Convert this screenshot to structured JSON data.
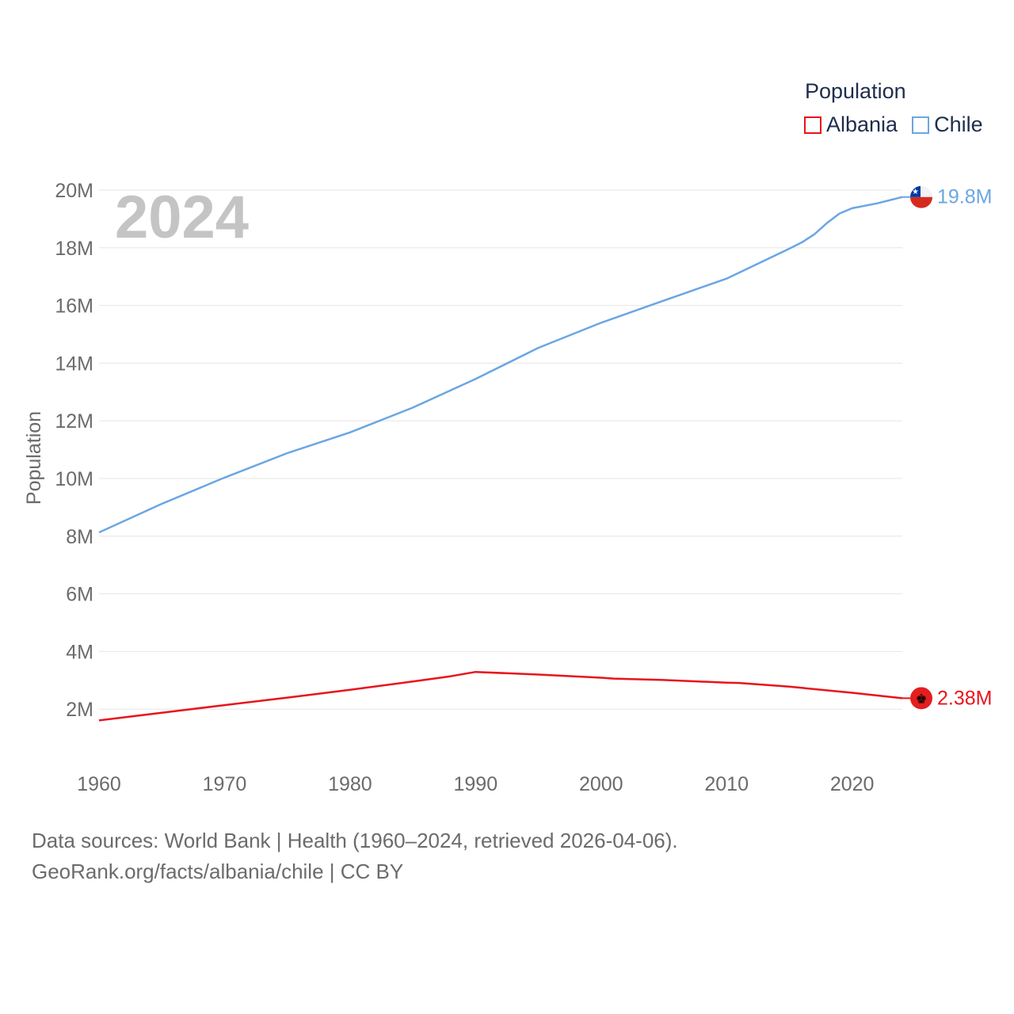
{
  "chart_data": {
    "type": "line",
    "year_label": "2024",
    "ylabel": "Population",
    "xlabel": "",
    "legend_title": "Population",
    "x_ticks": [
      "1960",
      "1970",
      "1980",
      "1990",
      "2000",
      "2010",
      "2020"
    ],
    "y_ticks": [
      "2M",
      "4M",
      "6M",
      "8M",
      "10M",
      "12M",
      "14M",
      "16M",
      "18M",
      "20M"
    ],
    "xlim": [
      1960,
      2024
    ],
    "ylim": [
      0,
      20000000
    ],
    "series": [
      {
        "name": "Albania",
        "color": "#e8141b",
        "end_label": "2.38M",
        "flag": "albania-flag-icon",
        "points": [
          [
            1960,
            1610000
          ],
          [
            1967,
            1980000
          ],
          [
            1970,
            2140000
          ],
          [
            1975,
            2400000
          ],
          [
            1980,
            2670000
          ],
          [
            1985,
            2960000
          ],
          [
            1988,
            3140000
          ],
          [
            1990,
            3290000
          ],
          [
            1995,
            3200000
          ],
          [
            2000,
            3090000
          ],
          [
            2001,
            3060000
          ],
          [
            2005,
            3010000
          ],
          [
            2010,
            2920000
          ],
          [
            2011,
            2910000
          ],
          [
            2015,
            2780000
          ],
          [
            2020,
            2570000
          ],
          [
            2024,
            2380000
          ]
        ]
      },
      {
        "name": "Chile",
        "color": "#6aa6e3",
        "end_label": "19.8M",
        "flag": "chile-flag-icon",
        "points": [
          [
            1960,
            8130000
          ],
          [
            1965,
            9120000
          ],
          [
            1970,
            10030000
          ],
          [
            1975,
            10880000
          ],
          [
            1980,
            11600000
          ],
          [
            1985,
            12460000
          ],
          [
            1990,
            13450000
          ],
          [
            1995,
            14530000
          ],
          [
            2000,
            15400000
          ],
          [
            2005,
            16170000
          ],
          [
            2010,
            16930000
          ],
          [
            2015,
            17970000
          ],
          [
            2016,
            18190000
          ],
          [
            2017,
            18470000
          ],
          [
            2018,
            18860000
          ],
          [
            2019,
            19190000
          ],
          [
            2020,
            19370000
          ],
          [
            2022,
            19540000
          ],
          [
            2024,
            19760000
          ]
        ]
      }
    ],
    "source_line1": "Data sources: World Bank | Health (1960–2024, retrieved 2026-04-06).",
    "source_line2": "GeoRank.org/facts/albania/chile | CC BY"
  }
}
